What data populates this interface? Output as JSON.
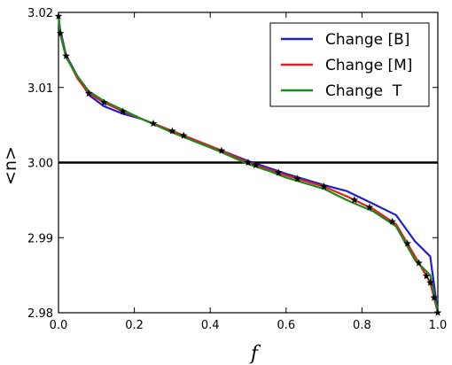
{
  "chart_data": {
    "type": "line",
    "title": "",
    "xlabel": "f",
    "ylabel": "<n>",
    "xlim": [
      0.0,
      1.0
    ],
    "ylim": [
      2.98,
      3.02
    ],
    "xticks": [
      "0.0",
      "0.2",
      "0.4",
      "0.6",
      "0.8",
      "1.0"
    ],
    "yticks": [
      "2.98",
      "2.99",
      "3.00",
      "3.01",
      "3.02"
    ],
    "grid": false,
    "legend_position": "top-right",
    "reference_line": {
      "y": 3.0,
      "color": "#000000"
    },
    "marker_x": [
      0.0,
      0.005,
      0.02,
      0.08,
      0.12,
      0.17,
      0.25,
      0.3,
      0.33,
      0.43,
      0.5,
      0.52,
      0.58,
      0.63,
      0.7,
      0.78,
      0.82,
      0.88,
      0.92,
      0.95,
      0.97,
      0.98,
      0.99,
      1.0
    ],
    "series": [
      {
        "name": "Change [B]",
        "color": "#1f1fd0",
        "x": [
          0.0,
          0.005,
          0.01,
          0.02,
          0.05,
          0.08,
          0.12,
          0.17,
          0.22,
          0.3,
          0.35,
          0.42,
          0.5,
          0.56,
          0.6,
          0.7,
          0.76,
          0.83,
          0.89,
          0.94,
          0.98,
          1.0
        ],
        "y": [
          3.0195,
          3.0175,
          3.0165,
          3.0143,
          3.0115,
          3.009,
          3.0075,
          3.0065,
          3.0058,
          3.0042,
          3.0032,
          3.0018,
          3.0002,
          2.9992,
          2.9985,
          2.997,
          2.9962,
          2.9945,
          2.993,
          2.9895,
          2.9875,
          2.98
        ]
      },
      {
        "name": "Change [M]",
        "color": "#e02020",
        "x": [
          0.0,
          0.005,
          0.01,
          0.02,
          0.05,
          0.08,
          0.12,
          0.17,
          0.22,
          0.3,
          0.35,
          0.42,
          0.5,
          0.56,
          0.6,
          0.7,
          0.76,
          0.83,
          0.89,
          0.94,
          0.98,
          1.0
        ],
        "y": [
          3.0195,
          3.0172,
          3.0162,
          3.0142,
          3.0112,
          3.0092,
          3.008,
          3.0068,
          3.0058,
          3.0042,
          3.0032,
          3.0018,
          3.0,
          2.999,
          2.9983,
          2.9968,
          2.9955,
          2.9938,
          2.9918,
          2.9875,
          2.984,
          2.98
        ]
      },
      {
        "name": "Change  T",
        "color": "#1a8a1a",
        "x": [
          0.0,
          0.005,
          0.01,
          0.02,
          0.05,
          0.08,
          0.12,
          0.17,
          0.22,
          0.3,
          0.35,
          0.42,
          0.5,
          0.56,
          0.6,
          0.7,
          0.76,
          0.83,
          0.89,
          0.94,
          0.98,
          1.0
        ],
        "y": [
          3.0195,
          3.017,
          3.016,
          3.014,
          3.0115,
          3.0095,
          3.0082,
          3.007,
          3.0058,
          3.004,
          3.003,
          3.0016,
          2.9998,
          2.9988,
          2.998,
          2.9965,
          2.995,
          2.9935,
          2.9915,
          2.987,
          2.985,
          2.98
        ]
      }
    ]
  }
}
